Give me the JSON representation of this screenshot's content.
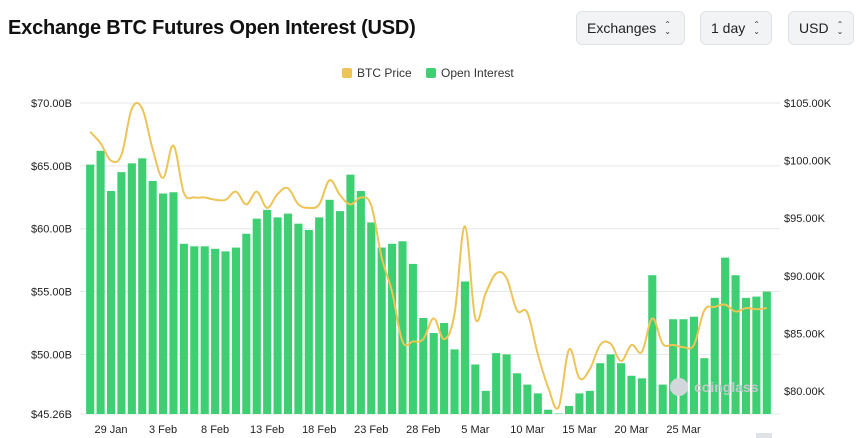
{
  "header": {
    "title": "Exchange BTC Futures Open Interest (USD)",
    "exchanges_label": "Exchanges",
    "interval_label": "1 day",
    "currency_label": "USD"
  },
  "watermark": "coinglass",
  "colors": {
    "bars": "#3ecf72",
    "price_line": "#ecc457",
    "grid": "#e4e7ea"
  },
  "chart_data": {
    "type": "bar",
    "legend": [
      "BTC Price",
      "Open Interest"
    ],
    "legend_position": "top-center",
    "grid": true,
    "x_tick_labels": [
      "29 Jan",
      "3 Feb",
      "8 Feb",
      "13 Feb",
      "18 Feb",
      "23 Feb",
      "28 Feb",
      "5 Mar",
      "10 Mar",
      "15 Mar",
      "20 Mar",
      "25 Mar"
    ],
    "y_left_ticks": [
      "$70.00B",
      "$65.00B",
      "$60.00B",
      "$55.00B",
      "$50.00B",
      "$45.26B"
    ],
    "y_right_ticks": [
      "$105.00K",
      "$100.00K",
      "$95.00K",
      "$90.00K",
      "$85.00K",
      "$80.00K"
    ],
    "y_left_range": [
      45.26,
      70
    ],
    "y_right_range": [
      78,
      105
    ],
    "series": [
      {
        "name": "Open Interest",
        "type": "bar",
        "axis": "left",
        "values": [
          65.1,
          66.2,
          63.0,
          64.5,
          65.2,
          65.6,
          63.8,
          62.8,
          62.9,
          58.8,
          58.6,
          58.6,
          58.4,
          58.2,
          58.5,
          59.6,
          60.8,
          61.5,
          60.9,
          61.2,
          60.4,
          59.9,
          60.9,
          62.3,
          61.4,
          64.3,
          63.0,
          60.5,
          58.5,
          58.8,
          59.0,
          57.2,
          52.9,
          51.7,
          52.5,
          50.4,
          55.8,
          49.2,
          47.1,
          50.1,
          50.0,
          48.5,
          47.6,
          46.9,
          45.6,
          45.3,
          45.9,
          46.9,
          47.1,
          49.3,
          50.0,
          49.3,
          48.3,
          48.1,
          56.3,
          47.6,
          52.8,
          52.8,
          53.0,
          49.7,
          54.5,
          57.7,
          56.3,
          54.5,
          54.6,
          55.0
        ],
        "last_value": 55.0
      },
      {
        "name": "BTC Price",
        "type": "line",
        "axis": "right",
        "values": [
          102.5,
          101.5,
          100.0,
          100.5,
          104.5,
          104.5,
          101.0,
          98.5,
          101.3,
          97.2,
          96.8,
          96.8,
          96.6,
          96.6,
          97.3,
          96.2,
          97.3,
          95.9,
          97.1,
          97.6,
          96.2,
          95.9,
          96.2,
          98.3,
          97.0,
          96.2,
          96.8,
          96.1,
          91.6,
          88.6,
          84.3,
          84.3,
          84.5,
          86.3,
          84.5,
          86.7,
          94.3,
          86.3,
          88.5,
          90.2,
          89.8,
          87.0,
          86.8,
          83.2,
          80.3,
          78.6,
          83.6,
          81.1,
          81.9,
          84.0,
          84.1,
          82.6,
          84.0,
          83.4,
          86.3,
          84.1,
          84.0,
          83.8,
          84.0,
          87.0,
          87.3,
          87.5,
          86.9,
          87.2,
          87.1,
          87.2
        ]
      }
    ]
  }
}
